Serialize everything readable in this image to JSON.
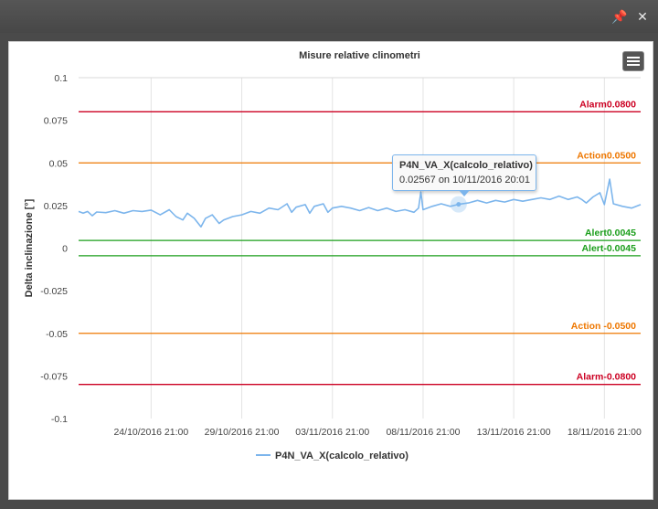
{
  "window": {
    "pin_icon": "pin-icon",
    "close_icon": "close-icon"
  },
  "chart_data": {
    "type": "line",
    "title": "Misure relative clinometri",
    "xlabel": "",
    "ylabel": "Delta inclinazione [°]",
    "ylim": [
      -0.1,
      0.1
    ],
    "y_ticks": [
      0.1,
      0.075,
      0.05,
      0.025,
      0,
      -0.025,
      -0.05,
      -0.075,
      -0.1
    ],
    "y_tick_labels": [
      "0.1",
      "0.075",
      "0.05",
      "0.025",
      "0",
      "-0.025",
      "-0.05",
      "-0.075",
      "-0.1"
    ],
    "x_range": [
      "2016-10-20 21:00",
      "2016-11-20 21:00"
    ],
    "x_ticks": [
      "2016-10-24 21:00",
      "2016-10-29 21:00",
      "2016-11-03 21:00",
      "2016-11-08 21:00",
      "2016-11-13 21:00",
      "2016-11-18 21:00"
    ],
    "x_tick_labels": [
      "24/10/2016 21:00",
      "29/10/2016 21:00",
      "03/11/2016 21:00",
      "08/11/2016 21:00",
      "13/11/2016 21:00",
      "18/11/2016 21:00"
    ],
    "grid": "vertical",
    "legend_position": "bottom-center",
    "series": [
      {
        "name": "P4N_VA_X(calcolo_relativo)",
        "color": "#7cb5ec",
        "points": [
          [
            "2016-10-20 21:00",
            0.0215
          ],
          [
            "2016-10-21 03:00",
            0.0205
          ],
          [
            "2016-10-21 09:00",
            0.0215
          ],
          [
            "2016-10-21 15:00",
            0.019
          ],
          [
            "2016-10-21 21:00",
            0.0212
          ],
          [
            "2016-10-22 09:00",
            0.0208
          ],
          [
            "2016-10-22 21:00",
            0.022
          ],
          [
            "2016-10-23 09:00",
            0.0205
          ],
          [
            "2016-10-23 21:00",
            0.022
          ],
          [
            "2016-10-24 09:00",
            0.0215
          ],
          [
            "2016-10-24 21:00",
            0.0223
          ],
          [
            "2016-10-25 09:00",
            0.0195
          ],
          [
            "2016-10-25 21:00",
            0.0225
          ],
          [
            "2016-10-26 06:00",
            0.0185
          ],
          [
            "2016-10-26 15:00",
            0.0165
          ],
          [
            "2016-10-26 21:00",
            0.0205
          ],
          [
            "2016-10-27 06:00",
            0.0175
          ],
          [
            "2016-10-27 15:00",
            0.0125
          ],
          [
            "2016-10-27 21:00",
            0.0175
          ],
          [
            "2016-10-28 06:00",
            0.0195
          ],
          [
            "2016-10-28 15:00",
            0.0145
          ],
          [
            "2016-10-28 21:00",
            0.0165
          ],
          [
            "2016-10-29 09:00",
            0.0185
          ],
          [
            "2016-10-29 21:00",
            0.0195
          ],
          [
            "2016-10-30 09:00",
            0.0215
          ],
          [
            "2016-10-30 21:00",
            0.0205
          ],
          [
            "2016-10-31 09:00",
            0.0235
          ],
          [
            "2016-10-31 21:00",
            0.0225
          ],
          [
            "2016-11-01 09:00",
            0.026
          ],
          [
            "2016-11-01 15:00",
            0.021
          ],
          [
            "2016-11-01 21:00",
            0.024
          ],
          [
            "2016-11-02 09:00",
            0.0255
          ],
          [
            "2016-11-02 15:00",
            0.0205
          ],
          [
            "2016-11-02 21:00",
            0.0245
          ],
          [
            "2016-11-03 09:00",
            0.026
          ],
          [
            "2016-11-03 15:00",
            0.021
          ],
          [
            "2016-11-03 21:00",
            0.0235
          ],
          [
            "2016-11-04 09:00",
            0.0245
          ],
          [
            "2016-11-04 21:00",
            0.0235
          ],
          [
            "2016-11-05 09:00",
            0.022
          ],
          [
            "2016-11-05 21:00",
            0.0238
          ],
          [
            "2016-11-06 09:00",
            0.022
          ],
          [
            "2016-11-06 21:00",
            0.0235
          ],
          [
            "2016-11-07 09:00",
            0.0215
          ],
          [
            "2016-11-07 21:00",
            0.0225
          ],
          [
            "2016-11-08 09:00",
            0.021
          ],
          [
            "2016-11-08 15:00",
            0.0235
          ],
          [
            "2016-11-08 18:00",
            0.033
          ],
          [
            "2016-11-08 21:00",
            0.0225
          ],
          [
            "2016-11-09 09:00",
            0.0245
          ],
          [
            "2016-11-09 21:00",
            0.026
          ],
          [
            "2016-11-10 09:00",
            0.0245
          ],
          [
            "2016-11-10 20:01",
            0.02567
          ],
          [
            "2016-11-11 09:00",
            0.0265
          ],
          [
            "2016-11-11 21:00",
            0.028
          ],
          [
            "2016-11-12 09:00",
            0.0265
          ],
          [
            "2016-11-12 21:00",
            0.028
          ],
          [
            "2016-11-13 09:00",
            0.027
          ],
          [
            "2016-11-13 21:00",
            0.0285
          ],
          [
            "2016-11-14 09:00",
            0.0275
          ],
          [
            "2016-11-14 21:00",
            0.0285
          ],
          [
            "2016-11-15 09:00",
            0.0295
          ],
          [
            "2016-11-15 21:00",
            0.0285
          ],
          [
            "2016-11-16 09:00",
            0.0305
          ],
          [
            "2016-11-16 21:00",
            0.0285
          ],
          [
            "2016-11-17 09:00",
            0.03
          ],
          [
            "2016-11-17 15:00",
            0.0285
          ],
          [
            "2016-11-17 21:00",
            0.0265
          ],
          [
            "2016-11-18 06:00",
            0.03
          ],
          [
            "2016-11-18 15:00",
            0.0325
          ],
          [
            "2016-11-18 21:00",
            0.0255
          ],
          [
            "2016-11-19 04:00",
            0.0405
          ],
          [
            "2016-11-19 09:00",
            0.026
          ],
          [
            "2016-11-19 21:00",
            0.0245
          ],
          [
            "2016-11-20 09:00",
            0.0235
          ],
          [
            "2016-11-20 21:00",
            0.0255
          ]
        ]
      }
    ],
    "plot_lines": [
      {
        "label": "Alarm0.0800",
        "value": 0.08,
        "color": "#cc0022"
      },
      {
        "label": "Action0.0500",
        "value": 0.05,
        "color": "#ee7700"
      },
      {
        "label": "Alert0.0045",
        "value": 0.0045,
        "color": "#1a9e1a"
      },
      {
        "label": "Alert-0.0045",
        "value": -0.0045,
        "color": "#1a9e1a"
      },
      {
        "label": "Action -0.0500",
        "value": -0.05,
        "color": "#ee7700"
      },
      {
        "label": "Alarm-0.0800",
        "value": -0.08,
        "color": "#cc0022"
      }
    ],
    "tooltip": {
      "series_name": "P4N_VA_X(calcolo_relativo)",
      "text": "0.02567 on 10/11/2016 20:01",
      "x": "2016-11-10 20:01",
      "y": 0.02567
    }
  }
}
